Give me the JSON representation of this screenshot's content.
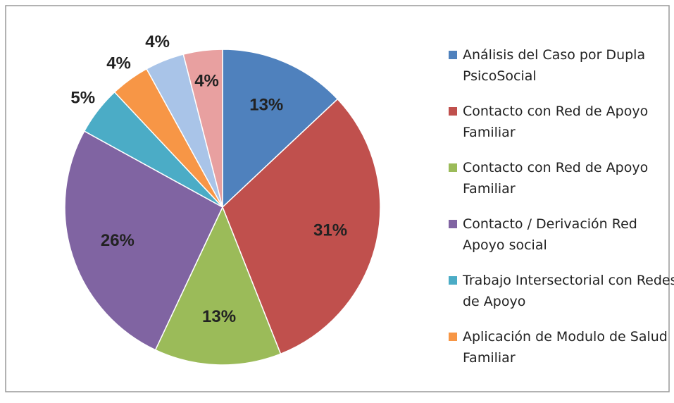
{
  "chart_data": {
    "type": "pie",
    "categories": [
      "Análisis del Caso por Dupla PsicoSocial",
      "Contacto con Red de Apoyo Familiar",
      "Contacto con Red de Apoyo Familiar",
      "Contacto / Derivación Red Apoyo social",
      "Trabajo Intersectorial con Redes de Apoyo",
      "Aplicación de Modulo de Salud Familiar",
      null,
      null
    ],
    "values": [
      13,
      31,
      13,
      26,
      5,
      4,
      4,
      4
    ],
    "value_labels": [
      "13%",
      "31%",
      "13%",
      "26%",
      "5%",
      "4%",
      "4%",
      "4%"
    ],
    "colors": [
      "#4f81bd",
      "#c0504d",
      "#9bbb59",
      "#8064a2",
      "#4bacc6",
      "#f79646",
      "#a9c4e8",
      "#e8a0a0"
    ],
    "legend": "right"
  }
}
